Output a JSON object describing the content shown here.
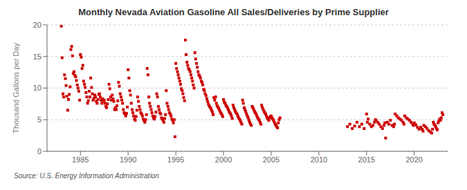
{
  "chart_data": {
    "type": "scatter",
    "title": "Monthly Nevada Aviation Gasoline All Sales/Deliveries by Prime Supplier",
    "ylabel": "Thousand Gallons per Day",
    "annotations": [
      "Source: U.S. Energy Information Administration"
    ],
    "color": "#cc0000",
    "marker": "square",
    "grid": true,
    "xlim": [
      1981.5,
      2023.5
    ],
    "xticks": [
      1985,
      1990,
      1995,
      2000,
      2005,
      2010,
      2015,
      2020
    ],
    "ylim": [
      0,
      20
    ],
    "yticks": [
      0,
      5,
      10,
      15,
      20
    ],
    "x": [
      1983.0,
      1983.08,
      1983.17,
      1983.25,
      1983.33,
      1983.42,
      1983.5,
      1983.58,
      1983.67,
      1983.75,
      1983.83,
      1983.92,
      1984.0,
      1984.08,
      1984.17,
      1984.25,
      1984.33,
      1984.42,
      1984.5,
      1984.58,
      1984.67,
      1984.75,
      1984.83,
      1984.92,
      1985.0,
      1985.08,
      1985.17,
      1985.25,
      1985.33,
      1985.42,
      1985.5,
      1985.58,
      1985.67,
      1985.75,
      1985.83,
      1985.92,
      1986.0,
      1986.08,
      1986.17,
      1986.25,
      1986.33,
      1986.42,
      1986.5,
      1986.58,
      1986.67,
      1986.75,
      1986.83,
      1986.92,
      1987.0,
      1987.08,
      1987.17,
      1987.25,
      1987.33,
      1987.42,
      1987.5,
      1987.58,
      1987.67,
      1987.75,
      1987.83,
      1987.92,
      1988.0,
      1988.08,
      1988.17,
      1988.25,
      1988.33,
      1988.42,
      1988.5,
      1988.58,
      1988.67,
      1988.75,
      1988.83,
      1988.92,
      1989.0,
      1989.08,
      1989.17,
      1989.25,
      1989.33,
      1989.42,
      1989.5,
      1989.58,
      1989.67,
      1989.75,
      1989.83,
      1989.92,
      1990.0,
      1990.08,
      1990.17,
      1990.25,
      1990.33,
      1990.42,
      1990.5,
      1990.58,
      1990.67,
      1990.75,
      1990.83,
      1990.92,
      1991.0,
      1991.08,
      1991.17,
      1991.25,
      1991.33,
      1991.42,
      1991.5,
      1991.58,
      1991.67,
      1991.75,
      1991.83,
      1991.92,
      1992.0,
      1992.08,
      1992.17,
      1992.25,
      1992.33,
      1992.42,
      1992.5,
      1992.58,
      1992.67,
      1992.75,
      1992.83,
      1992.92,
      1993.0,
      1993.08,
      1993.17,
      1993.25,
      1993.33,
      1993.42,
      1993.5,
      1993.58,
      1993.67,
      1993.75,
      1993.83,
      1993.92,
      1994.0,
      1994.08,
      1994.17,
      1994.25,
      1994.33,
      1994.42,
      1994.5,
      1994.58,
      1994.67,
      1994.75,
      1994.83,
      1994.92,
      1995.0,
      1995.08,
      1995.17,
      1995.25,
      1995.33,
      1995.42,
      1995.5,
      1995.58,
      1995.67,
      1995.75,
      1995.83,
      1995.92,
      1996.0,
      1996.08,
      1996.17,
      1996.25,
      1996.33,
      1996.42,
      1996.5,
      1996.58,
      1996.67,
      1996.75,
      1996.83,
      1996.92,
      1997.0,
      1997.08,
      1997.17,
      1997.25,
      1997.33,
      1997.42,
      1997.5,
      1997.58,
      1997.67,
      1997.75,
      1997.83,
      1997.92,
      1998.0,
      1998.08,
      1998.17,
      1998.25,
      1998.33,
      1998.42,
      1998.5,
      1998.58,
      1998.67,
      1998.75,
      1998.83,
      1998.92,
      1999.0,
      1999.08,
      1999.17,
      1999.25,
      1999.33,
      1999.42,
      1999.5,
      1999.58,
      1999.67,
      1999.75,
      1999.83,
      1999.92,
      2000.0,
      2000.08,
      2000.17,
      2000.25,
      2000.33,
      2000.42,
      2000.5,
      2000.58,
      2000.67,
      2000.75,
      2000.83,
      2000.92,
      2001.0,
      2001.08,
      2001.17,
      2001.25,
      2001.33,
      2001.42,
      2001.5,
      2001.58,
      2001.67,
      2001.75,
      2001.83,
      2001.92,
      2002.0,
      2002.08,
      2002.17,
      2002.25,
      2002.33,
      2002.42,
      2002.5,
      2002.58,
      2002.67,
      2002.75,
      2002.83,
      2002.92,
      2003.0,
      2003.08,
      2003.17,
      2003.25,
      2003.33,
      2003.42,
      2003.5,
      2003.58,
      2003.67,
      2003.75,
      2003.83,
      2003.92,
      2004.0,
      2004.08,
      2004.17,
      2004.25,
      2004.33,
      2004.42,
      2004.5,
      2004.58,
      2004.67,
      2004.75,
      2004.83,
      2004.92,
      2005.0,
      2005.08,
      2005.17,
      2005.25,
      2005.33,
      2005.42,
      2005.5,
      2005.58,
      2005.67,
      2005.75,
      2005.83,
      2005.92,
      2013.0,
      2013.25,
      2013.5,
      2013.75,
      2014.0,
      2014.25,
      2014.5,
      2014.75,
      2015.0,
      2015.08,
      2015.17,
      2015.33,
      2015.5,
      2015.67,
      2015.83,
      2015.92,
      2016.0,
      2016.17,
      2016.33,
      2016.5,
      2016.67,
      2016.83,
      2016.92,
      2017.0,
      2017.17,
      2017.33,
      2017.5,
      2017.67,
      2017.83,
      2017.92,
      2018.0,
      2018.17,
      2018.33,
      2018.5,
      2018.67,
      2018.83,
      2018.92,
      2019.0,
      2019.17,
      2019.33,
      2019.5,
      2019.67,
      2019.83,
      2019.92,
      2020.0,
      2020.17,
      2020.33,
      2020.5,
      2020.67,
      2020.83,
      2020.92,
      2021.0,
      2021.17,
      2021.33,
      2021.5,
      2021.67,
      2021.83,
      2021.92,
      2022.0,
      2022.08,
      2022.17,
      2022.25,
      2022.33,
      2022.42,
      2022.5,
      2022.58,
      2022.67,
      2022.75,
      2022.83,
      2022.92,
      2023.0
    ],
    "values": [
      19.8,
      14.8,
      9.1,
      8.6,
      12.1,
      11.5,
      10.4,
      8.7,
      6.5,
      8.2,
      9.0,
      10.2,
      16.1,
      16.6,
      15.1,
      12.3,
      12.6,
      12.0,
      11.8,
      11.2,
      10.5,
      10.0,
      9.5,
      8.1,
      15.3,
      14.9,
      13.1,
      13.6,
      11.1,
      10.6,
      10.1,
      9.3,
      8.6,
      7.6,
      8.0,
      9.5,
      8.6,
      11.6,
      10.1,
      9.1,
      8.1,
      8.4,
      8.9,
      8.6,
      7.9,
      7.6,
      8.2,
      9.0,
      9.1,
      8.6,
      8.1,
      7.6,
      8.3,
      7.9,
      8.1,
      7.6,
      7.1,
      6.9,
      7.5,
      8.2,
      10.6,
      9.9,
      8.6,
      8.1,
      8.9,
      8.3,
      7.9,
      6.6,
      6.9,
      6.6,
      7.2,
      8.0,
      10.9,
      10.3,
      9.1,
      8.6,
      8.1,
      7.6,
      6.6,
      6.1,
      5.9,
      5.6,
      6.0,
      7.0,
      12.9,
      11.6,
      9.6,
      8.9,
      7.6,
      6.6,
      6.1,
      5.6,
      5.1,
      4.9,
      5.5,
      6.5,
      8.6,
      7.9,
      7.1,
      6.6,
      6.1,
      5.9,
      5.6,
      5.1,
      4.9,
      4.6,
      5.0,
      5.8,
      13.1,
      12.1,
      8.6,
      7.6,
      7.1,
      6.6,
      6.1,
      5.6,
      5.3,
      5.1,
      5.5,
      6.2,
      9.1,
      8.6,
      7.1,
      6.6,
      6.1,
      5.9,
      5.3,
      5.1,
      4.9,
      4.6,
      5.2,
      5.8,
      9.6,
      7.6,
      7.1,
      6.6,
      6.1,
      5.9,
      5.6,
      5.1,
      4.9,
      4.5,
      5.0,
      2.3,
      13.9,
      13.1,
      12.6,
      12.1,
      11.6,
      11.1,
      10.6,
      9.9,
      9.6,
      9.1,
      8.5,
      8.0,
      17.6,
      15.3,
      14.1,
      13.6,
      13.1,
      12.9,
      12.6,
      12.1,
      11.6,
      11.1,
      10.5,
      10.0,
      15.6,
      14.6,
      13.9,
      13.3,
      12.6,
      12.1,
      11.9,
      11.6,
      11.1,
      10.9,
      10.5,
      9.8,
      9.6,
      9.1,
      8.8,
      8.3,
      7.9,
      7.5,
      7.2,
      7.0,
      6.8,
      6.5,
      6.2,
      5.8,
      8.5,
      8.1,
      8.6,
      7.6,
      7.2,
      7.0,
      6.8,
      6.5,
      6.2,
      6.0,
      5.8,
      5.5,
      8.2,
      7.8,
      7.6,
      7.3,
      7.1,
      6.9,
      6.6,
      6.3,
      6.1,
      5.9,
      5.6,
      5.2,
      7.3,
      6.9,
      6.6,
      6.3,
      6.1,
      5.9,
      5.6,
      5.3,
      5.1,
      4.9,
      4.6,
      4.3,
      8.1,
      7.6,
      6.9,
      6.6,
      6.3,
      5.9,
      5.6,
      5.3,
      4.9,
      4.6,
      4.3,
      4.1,
      7.1,
      6.9,
      6.6,
      6.3,
      6.1,
      5.9,
      5.6,
      5.3,
      5.1,
      4.9,
      4.6,
      4.3,
      7.3,
      6.9,
      6.6,
      6.3,
      6.1,
      5.9,
      5.6,
      5.3,
      5.1,
      4.9,
      5.3,
      5.5,
      5.6,
      5.3,
      5.1,
      4.9,
      4.6,
      4.3,
      4.1,
      3.9,
      3.7,
      4.5,
      5.0,
      5.3,
      3.9,
      4.3,
      3.6,
      4.0,
      4.6,
      3.9,
      4.3,
      3.6,
      5.9,
      4.6,
      5.1,
      4.3,
      3.9,
      4.1,
      4.6,
      5.0,
      4.9,
      4.6,
      4.3,
      3.9,
      3.6,
      4.1,
      4.5,
      2.1,
      4.6,
      4.3,
      4.9,
      4.1,
      3.9,
      4.3,
      5.9,
      5.6,
      5.3,
      5.1,
      4.9,
      4.6,
      4.3,
      5.6,
      5.3,
      5.1,
      4.9,
      4.6,
      4.3,
      4.1,
      4.5,
      4.2,
      3.8,
      3.5,
      3.8,
      3.5,
      3.2,
      4.1,
      3.9,
      3.6,
      3.3,
      3.1,
      2.9,
      3.5,
      4.6,
      4.3,
      4.1,
      3.9,
      3.6,
      3.4,
      4.5,
      4.8,
      5.1,
      4.9,
      5.3,
      6.1,
      5.8
    ]
  }
}
